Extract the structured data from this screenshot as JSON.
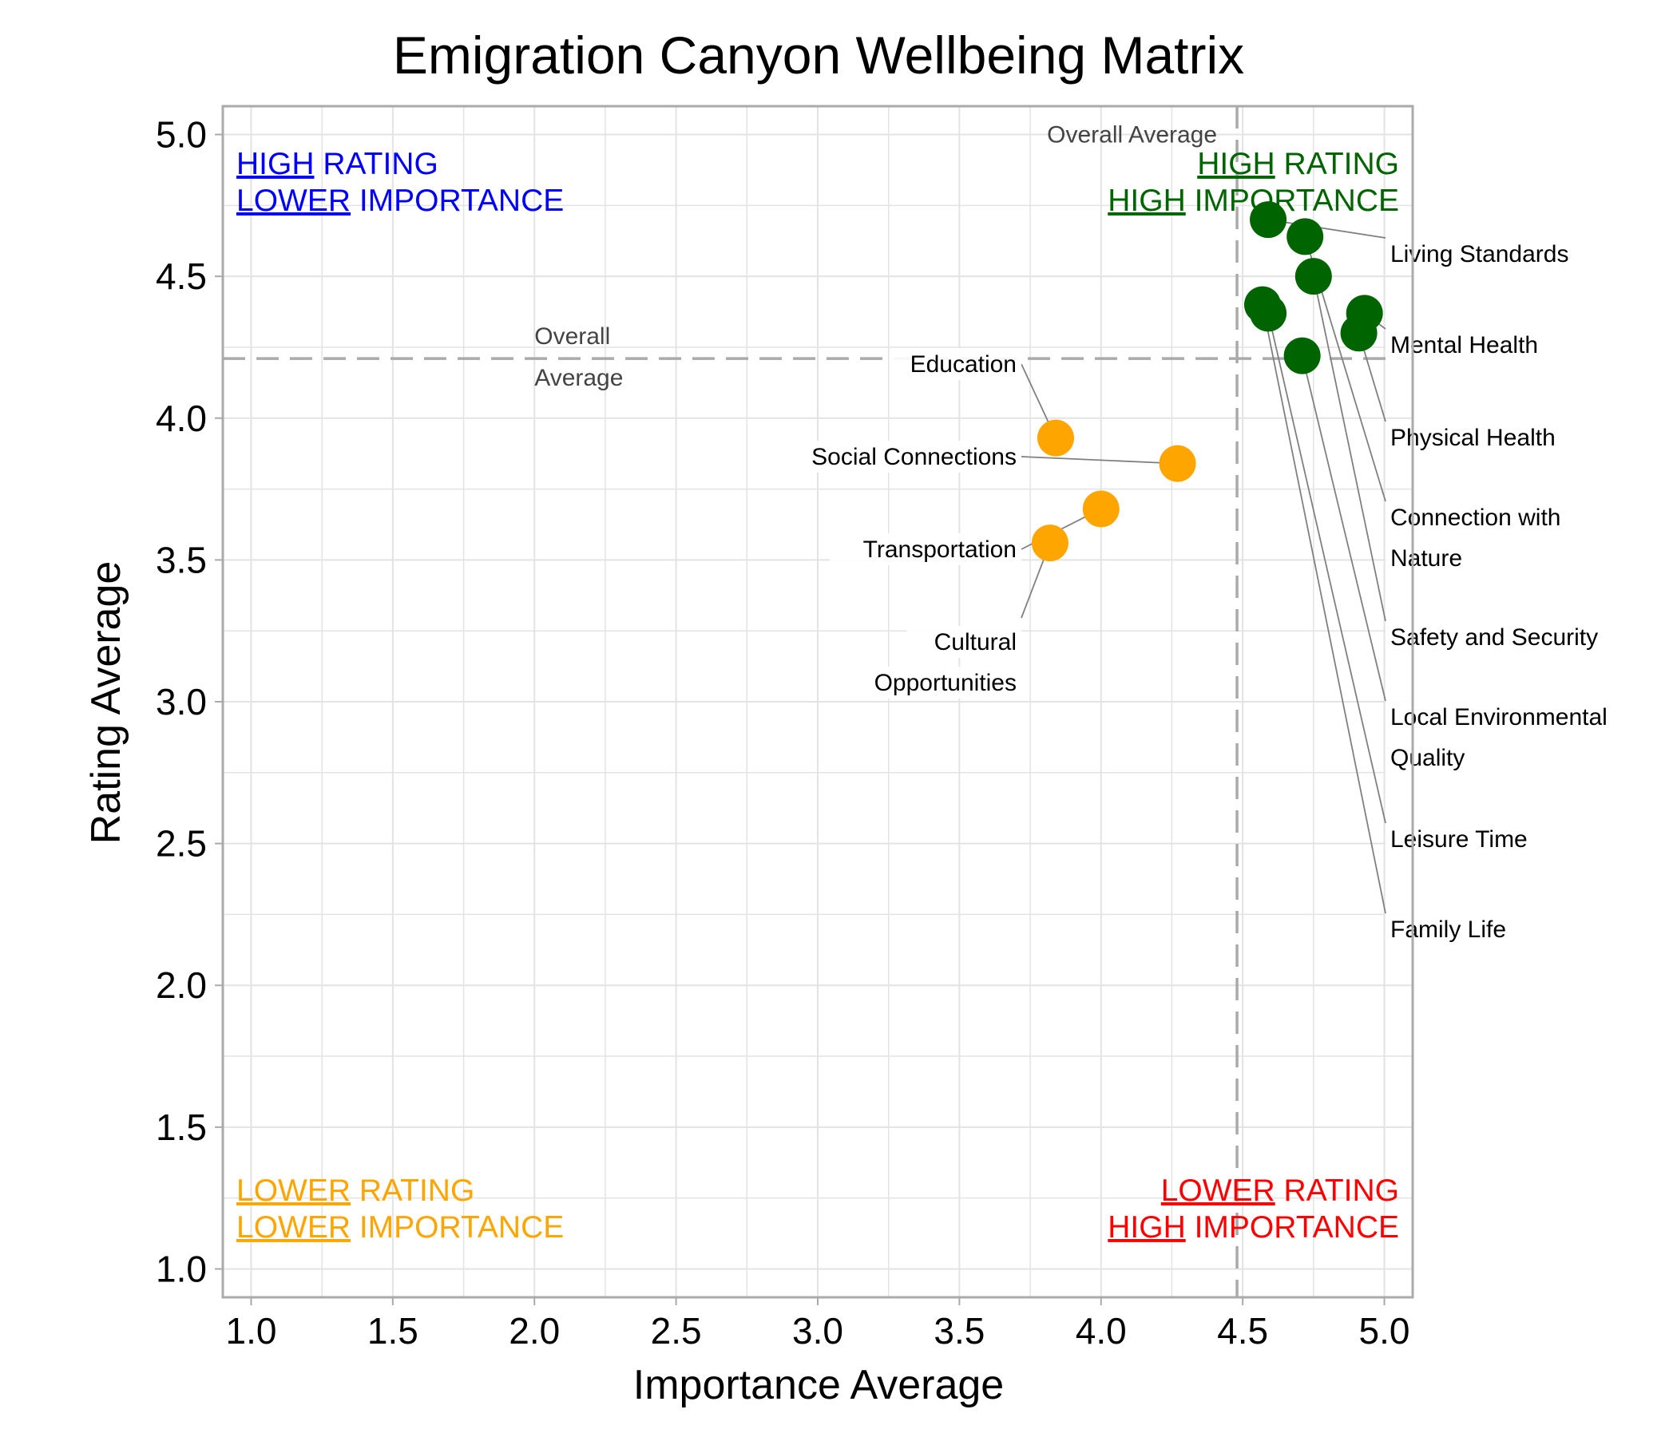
{
  "chart_data": {
    "type": "scatter",
    "title": "Emigration Canyon Wellbeing Matrix",
    "xlabel": "Importance Average",
    "ylabel": "Rating Average",
    "xlim": [
      0.9,
      5.1
    ],
    "ylim": [
      0.9,
      5.1
    ],
    "xticks": [
      "1.0",
      "1.5",
      "2.0",
      "2.5",
      "3.0",
      "3.5",
      "4.0",
      "4.5",
      "5.0"
    ],
    "yticks": [
      "1.0",
      "1.5",
      "2.0",
      "2.5",
      "3.0",
      "3.5",
      "4.0",
      "4.5",
      "5.0"
    ],
    "grid": true,
    "reference_lines": {
      "importance_average": 4.48,
      "rating_average": 4.21,
      "vertical_label": "Overall Average",
      "horizontal_label_lines": [
        "Overall",
        "Average"
      ]
    },
    "quadrants": {
      "top_left": {
        "line1_u": "HIGH",
        "line1": " RATING",
        "line2_u": "LOWER",
        "line2": " IMPORTANCE",
        "color": "#0000ff"
      },
      "top_right": {
        "line1_u": "HIGH",
        "line1": " RATING",
        "line2_u": "HIGH",
        "line2": " IMPORTANCE",
        "color": "#006400"
      },
      "bottom_left": {
        "line1_u": "LOWER",
        "line1": " RATING",
        "line2_u": "LOWER",
        "line2": " IMPORTANCE",
        "color": "#ffa500"
      },
      "bottom_right": {
        "line1_u": "LOWER",
        "line1": " RATING",
        "line2_u": "HIGH",
        "line2": " IMPORTANCE",
        "color": "#ff0000"
      }
    },
    "colors": {
      "high": "#006400",
      "low": "#ffa500"
    },
    "points": [
      {
        "label": [
          "Living Standards"
        ],
        "x": 4.59,
        "y": 4.7,
        "group": "high"
      },
      {
        "label": [
          "Mental Health"
        ],
        "x": 4.93,
        "y": 4.37,
        "group": "high"
      },
      {
        "label": [
          "Physical Health"
        ],
        "x": 4.91,
        "y": 4.3,
        "group": "high"
      },
      {
        "label": [
          "Connection with",
          "Nature"
        ],
        "x": 4.72,
        "y": 4.64,
        "group": "high"
      },
      {
        "label": [
          "Safety and Security"
        ],
        "x": 4.75,
        "y": 4.5,
        "group": "high"
      },
      {
        "label": [
          "Local Environmental",
          "Quality"
        ],
        "x": 4.71,
        "y": 4.22,
        "group": "high"
      },
      {
        "label": [
          "Leisure Time"
        ],
        "x": 4.59,
        "y": 4.37,
        "group": "high"
      },
      {
        "label": [
          "Family Life"
        ],
        "x": 4.57,
        "y": 4.4,
        "group": "high"
      },
      {
        "label": [
          "Education"
        ],
        "x": 3.84,
        "y": 3.93,
        "group": "low"
      },
      {
        "label": [
          "Social Connections"
        ],
        "x": 4.27,
        "y": 3.84,
        "group": "low"
      },
      {
        "label": [
          "Transportation"
        ],
        "x": 4.0,
        "y": 3.68,
        "group": "low"
      },
      {
        "label": [
          "Cultural",
          "Opportunities"
        ],
        "x": 3.82,
        "y": 3.56,
        "group": "low"
      }
    ]
  }
}
